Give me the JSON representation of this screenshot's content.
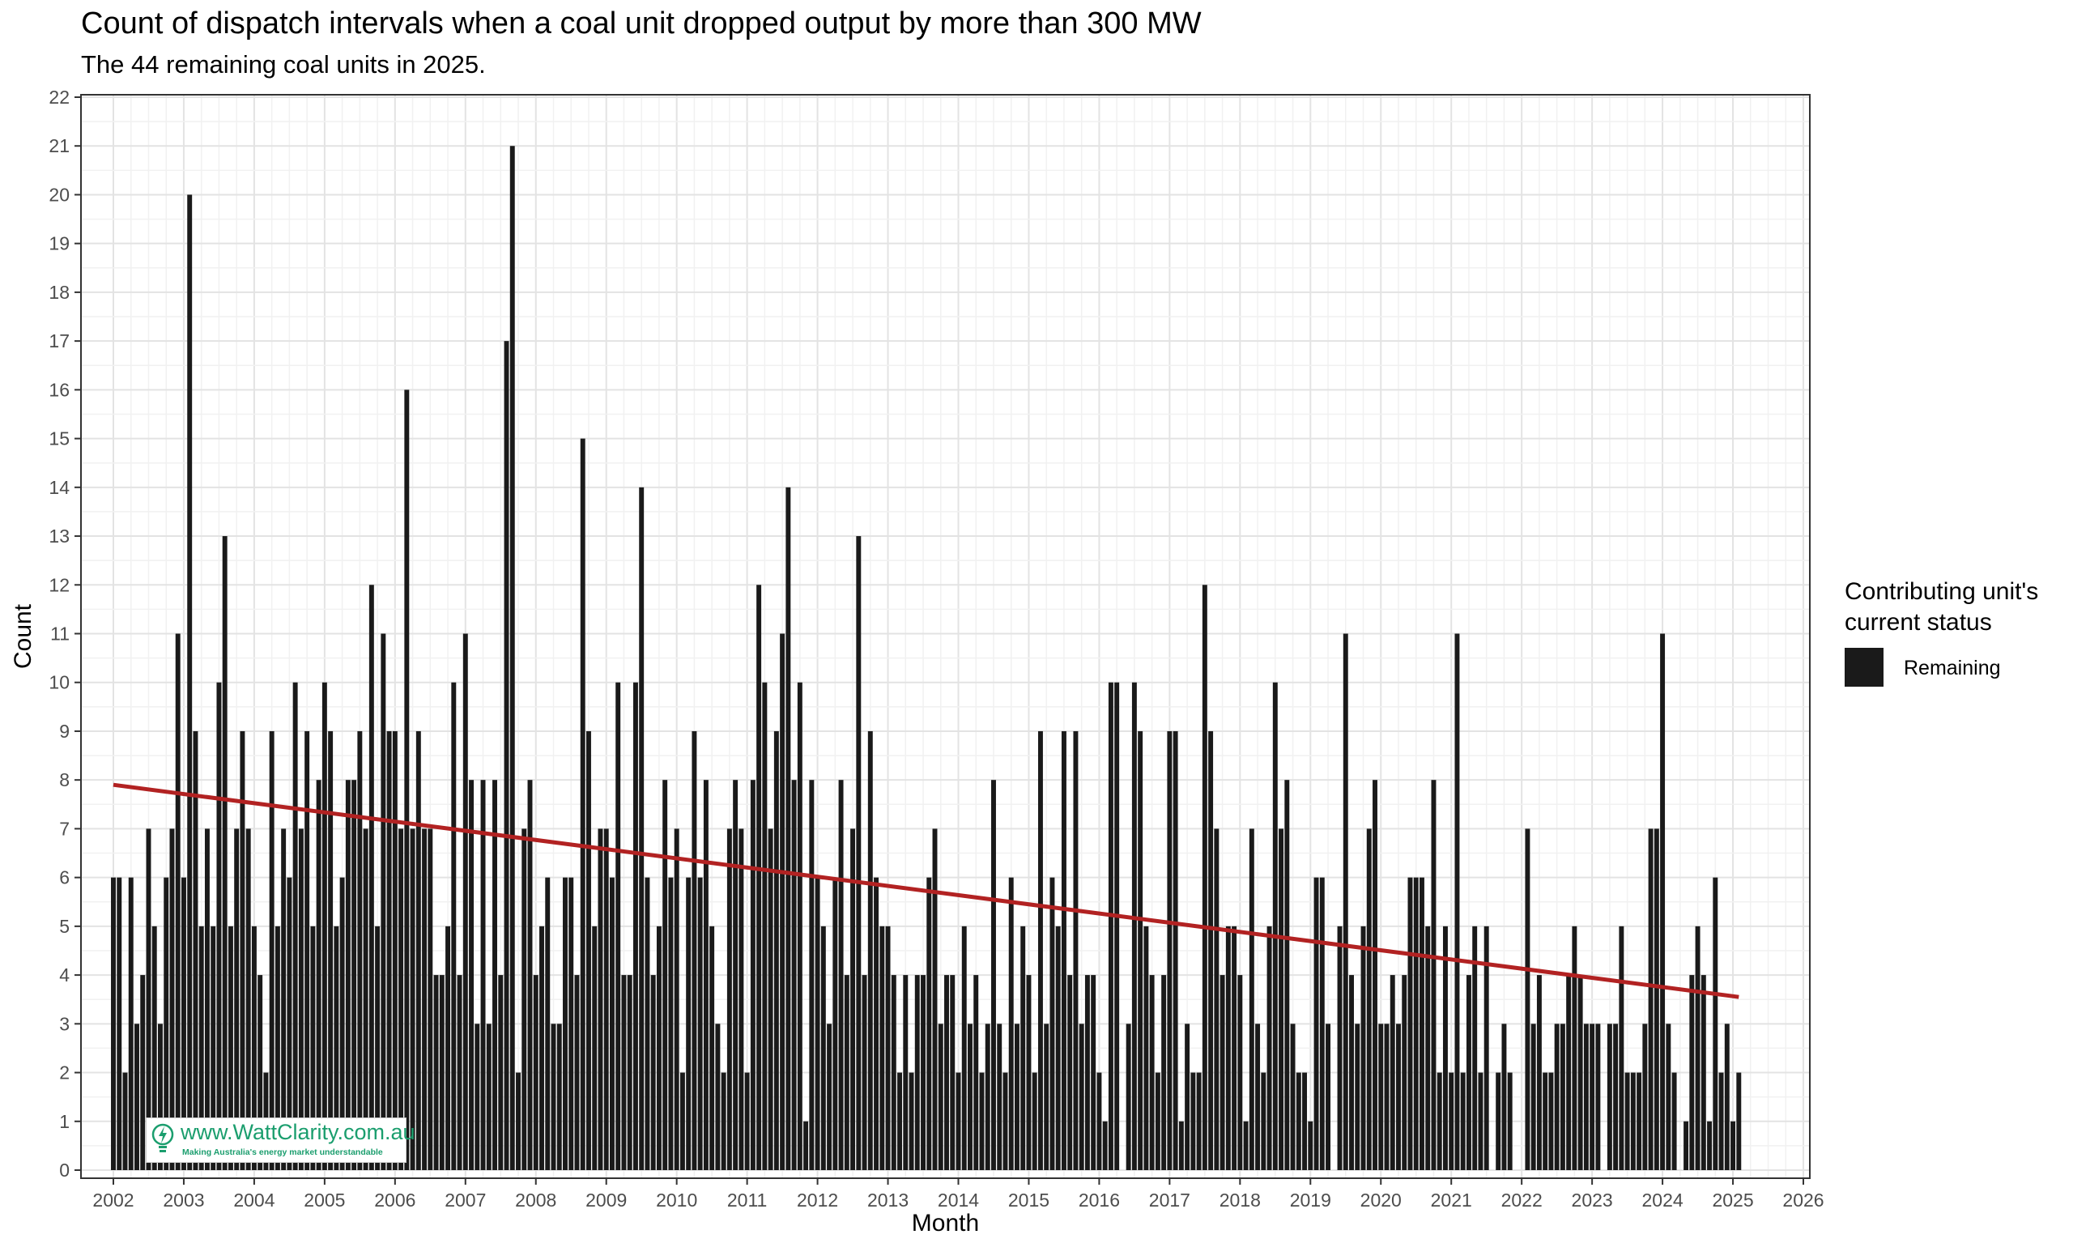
{
  "chart_data": {
    "type": "bar",
    "title": "Count of dispatch intervals when a coal unit dropped output by more than 300 MW",
    "subtitle": "The 44 remaining coal units in 2025.",
    "xlabel": "Month",
    "ylabel": "Count",
    "ylim": [
      0,
      22
    ],
    "xlim": [
      "2002-01",
      "2026-01"
    ],
    "x_ticks": [
      "2002",
      "2003",
      "2004",
      "2005",
      "2006",
      "2007",
      "2008",
      "2009",
      "2010",
      "2011",
      "2012",
      "2013",
      "2014",
      "2015",
      "2016",
      "2017",
      "2018",
      "2019",
      "2020",
      "2021",
      "2022",
      "2023",
      "2024",
      "2025",
      "2026"
    ],
    "y_ticks": [
      "0",
      "1",
      "2",
      "3",
      "4",
      "5",
      "6",
      "7",
      "8",
      "9",
      "10",
      "11",
      "12",
      "13",
      "14",
      "15",
      "16",
      "17",
      "18",
      "19",
      "20",
      "21",
      "22"
    ],
    "grid": true,
    "legend": {
      "title": "Contributing unit's current status",
      "position": "right",
      "entries": [
        "Remaining"
      ]
    },
    "series": [
      {
        "name": "Remaining",
        "color": "#1a1a1a",
        "start_month": "2002-01",
        "values": [
          6,
          6,
          2,
          6,
          3,
          4,
          7,
          5,
          3,
          6,
          7,
          11,
          6,
          20,
          9,
          5,
          7,
          5,
          10,
          13,
          5,
          7,
          9,
          7,
          5,
          4,
          2,
          9,
          5,
          7,
          6,
          10,
          7,
          9,
          5,
          8,
          10,
          9,
          5,
          6,
          8,
          8,
          9,
          7,
          12,
          5,
          11,
          9,
          9,
          7,
          16,
          7,
          9,
          7,
          7,
          4,
          4,
          5,
          10,
          4,
          11,
          8,
          3,
          8,
          3,
          8,
          4,
          17,
          21,
          2,
          7,
          8,
          4,
          5,
          6,
          3,
          3,
          6,
          6,
          4,
          15,
          9,
          5,
          7,
          7,
          6,
          10,
          4,
          4,
          10,
          14,
          6,
          4,
          5,
          8,
          6,
          7,
          2,
          6,
          9,
          6,
          8,
          5,
          3,
          2,
          7,
          8,
          7,
          2,
          8,
          12,
          10,
          7,
          9,
          11,
          14,
          8,
          10,
          1,
          8,
          6,
          5,
          3,
          6,
          8,
          4,
          7,
          13,
          4,
          9,
          6,
          5,
          5,
          4,
          2,
          4,
          2,
          4,
          4,
          6,
          7,
          3,
          4,
          4,
          2,
          5,
          3,
          4,
          2,
          3,
          8,
          3,
          2,
          6,
          3,
          5,
          4,
          2,
          9,
          3,
          6,
          5,
          9,
          4,
          9,
          3,
          4,
          4,
          2,
          1,
          10,
          10,
          0,
          3,
          10,
          9,
          5,
          4,
          2,
          4,
          9,
          9,
          1,
          3,
          2,
          2,
          12,
          9,
          7,
          4,
          5,
          5,
          4,
          1,
          7,
          3,
          2,
          5,
          10,
          7,
          8,
          3,
          2,
          2,
          1,
          6,
          6,
          3,
          0,
          5,
          11,
          4,
          3,
          5,
          7,
          8,
          3,
          3,
          4,
          3,
          4,
          6,
          6,
          6,
          5,
          8,
          2,
          5,
          2,
          11,
          2,
          4,
          5,
          2,
          5,
          0,
          2,
          3,
          2,
          0,
          0,
          7,
          3,
          4,
          2,
          2,
          3,
          3,
          4,
          5,
          4,
          3,
          3,
          3,
          0,
          3,
          3,
          5,
          2,
          2,
          2,
          3,
          7,
          7,
          11,
          3,
          2,
          0,
          1,
          4,
          5,
          4,
          1,
          6,
          2,
          3,
          1,
          2
        ]
      }
    ],
    "trend_line": {
      "color": "#b22222",
      "start_value": 7.9,
      "end_value": 3.55
    }
  },
  "watermark": {
    "url": "www.WattClarity.com.au",
    "tagline": "Making Australia's energy market understandable"
  }
}
